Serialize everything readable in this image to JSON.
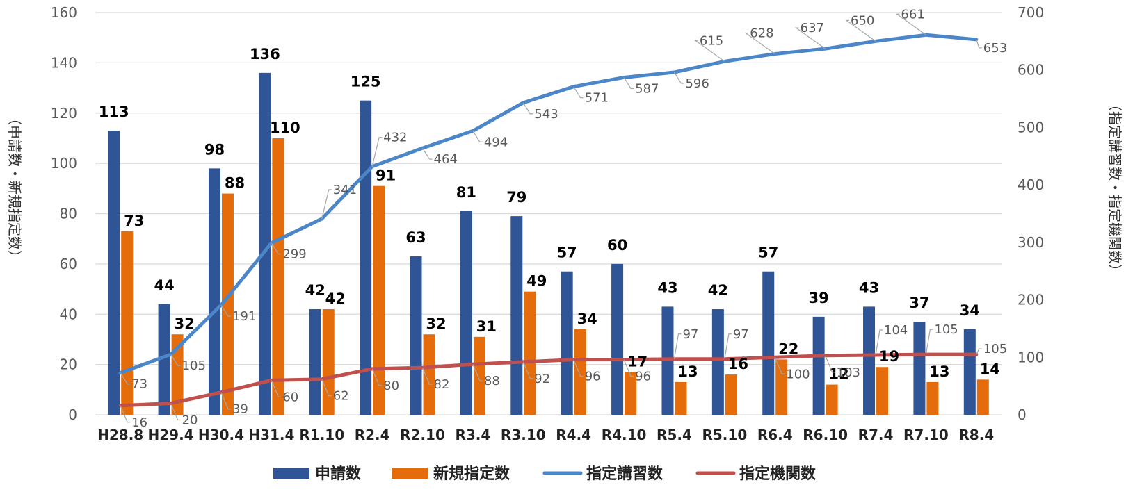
{
  "chart_data": {
    "type": "bar",
    "categories": [
      "H28.8",
      "H29.4",
      "H30.4",
      "H31.4",
      "R1.10",
      "R2.4",
      "R2.10",
      "R3.4",
      "R3.10",
      "R4.4",
      "R4.10",
      "R5.4",
      "R5.10",
      "R6.4",
      "R6.10",
      "R7.4",
      "R7.10",
      "R8.4"
    ],
    "series": [
      {
        "name": "申請数",
        "kind": "bar",
        "axis": "left",
        "color": "#2f5597",
        "values": [
          113,
          44,
          98,
          136,
          42,
          125,
          63,
          81,
          79,
          57,
          60,
          43,
          42,
          57,
          39,
          43,
          37,
          34
        ]
      },
      {
        "name": "新規指定数",
        "kind": "bar",
        "axis": "left",
        "color": "#e46c0a",
        "values": [
          73,
          32,
          88,
          110,
          42,
          91,
          32,
          31,
          49,
          34,
          17,
          13,
          16,
          22,
          12,
          19,
          13,
          14
        ]
      },
      {
        "name": "指定講習数",
        "kind": "line",
        "axis": "right",
        "color": "#4a86c8",
        "values": [
          73,
          105,
          191,
          299,
          341,
          432,
          464,
          494,
          543,
          571,
          587,
          596,
          615,
          628,
          637,
          650,
          661,
          653
        ]
      },
      {
        "name": "指定機関数",
        "kind": "line",
        "axis": "right",
        "color": "#c0504d",
        "values": [
          16,
          20,
          39,
          60,
          62,
          80,
          82,
          88,
          92,
          96,
          96,
          97,
          97,
          100,
          103,
          104,
          105,
          105
        ]
      }
    ],
    "y_left": {
      "label": "（申請数・新規指定数）",
      "ylim": [
        0,
        160
      ],
      "ticks": [
        0,
        20,
        40,
        60,
        80,
        100,
        120,
        140,
        160
      ]
    },
    "y_right": {
      "label": "（指定講習数・指定機関数）",
      "ylim": [
        0,
        700
      ],
      "ticks": [
        0,
        100,
        200,
        300,
        400,
        500,
        600,
        700
      ]
    },
    "grid": true,
    "legend_position": "bottom"
  }
}
